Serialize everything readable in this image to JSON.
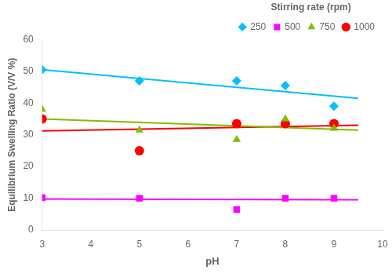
{
  "chart_data": {
    "type": "scatter",
    "xlabel": "pH",
    "ylabel": "Equilibrium Swelling Ratio (V/V %)",
    "xlim": [
      3,
      10
    ],
    "ylim": [
      0,
      60
    ],
    "xticks": [
      3,
      4,
      5,
      6,
      7,
      8,
      9,
      10
    ],
    "yticks": [
      0,
      10,
      20,
      30,
      40,
      50,
      60
    ],
    "grid": false,
    "legend": "upper right",
    "legend_title": "Stirring rate (rpm)",
    "series": [
      {
        "name": "250",
        "color": "#00BFFF",
        "marker": "diamond",
        "x": [
          3,
          5,
          7,
          8,
          9
        ],
        "values": [
          50.5,
          47.0,
          47.0,
          45.5,
          39.0
        ],
        "trend": {
          "x": [
            3,
            9.5
          ],
          "values": [
            50.5,
            41.5
          ]
        }
      },
      {
        "name": "500",
        "color": "#FF00FF",
        "marker": "square",
        "x": [
          3,
          5,
          7,
          8,
          9
        ],
        "values": [
          10.2,
          10.0,
          6.5,
          10.0,
          10.0
        ],
        "trend": {
          "x": [
            3,
            9.5
          ],
          "values": [
            9.8,
            9.5
          ]
        }
      },
      {
        "name": "750",
        "color": "#7FBF00",
        "marker": "triangle",
        "x": [
          3,
          5,
          7,
          8,
          9
        ],
        "values": [
          38.0,
          31.5,
          28.5,
          35.0,
          32.0
        ],
        "trend": {
          "x": [
            3,
            9.5
          ],
          "values": [
            35.0,
            31.5
          ]
        }
      },
      {
        "name": "1000",
        "color": "#FF0000",
        "marker": "circle",
        "x": [
          3,
          5,
          7,
          8,
          9
        ],
        "values": [
          35.0,
          25.0,
          33.5,
          33.5,
          33.5
        ],
        "trend": {
          "x": [
            3,
            9.5
          ],
          "values": [
            31.2,
            33.0
          ]
        }
      }
    ]
  }
}
